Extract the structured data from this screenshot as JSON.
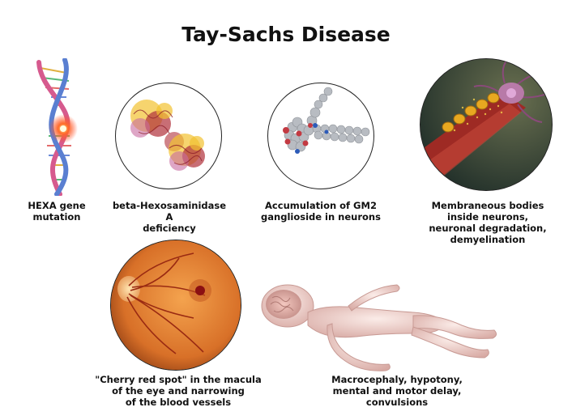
{
  "title": "Tay-Sachs Disease",
  "items": [
    {
      "icon": "dna-helix-icon",
      "lines": [
        "HEXA gene",
        "mutation"
      ]
    },
    {
      "icon": "enzyme-protein-icon",
      "lines": [
        "beta-Hexosaminidase A",
        "deficiency"
      ]
    },
    {
      "icon": "ganglioside-molecule-icon",
      "lines": [
        "Accumulation of GM2",
        "ganglioside in neurons"
      ]
    },
    {
      "icon": "neuron-icon",
      "lines": [
        "Membraneous bodies",
        "inside neurons,",
        "neuronal degradation,",
        "demyelination"
      ]
    },
    {
      "icon": "retina-fundus-icon",
      "lines": [
        "\"Cherry red spot\" in the macula",
        "of the eye and narrowing",
        "of the blood vessels"
      ]
    },
    {
      "icon": "infant-body-icon",
      "lines": [
        "Macrocephaly, hypotony,",
        "mental and motor delay,",
        "convulsions"
      ]
    }
  ],
  "colors": {
    "dna_pink": "#d65a8e",
    "dna_blue": "#5a7fd1",
    "mutation_glow": "#ff4a2a",
    "protein_red": "#b0303a",
    "protein_yellow": "#f2c230",
    "molecule_gray": "#b8bcc2",
    "retina_orange": "#e4863a",
    "cherry_red": "#8b0f12",
    "infant_skin": "#f3d7d3"
  }
}
